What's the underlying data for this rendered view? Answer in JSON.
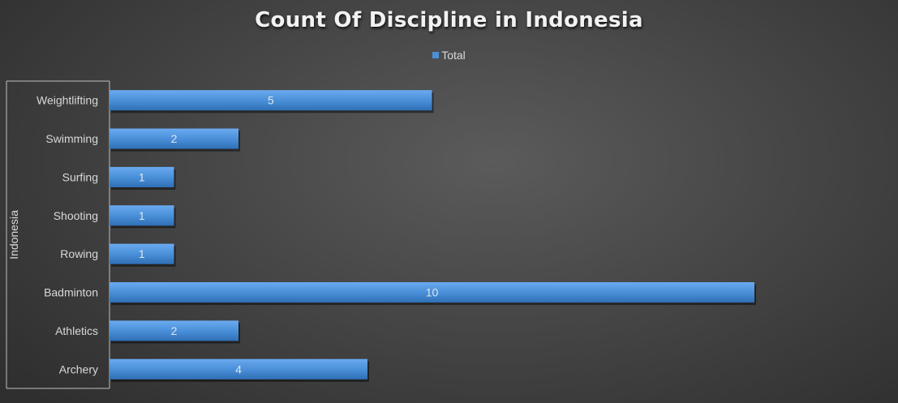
{
  "chart_data": {
    "type": "bar",
    "orientation": "horizontal",
    "title": "Count Of Discipline in Indonesia",
    "group_label": "Indonesia",
    "legend": [
      "Total"
    ],
    "legend_position": "top",
    "categories": [
      "Weightlifting",
      "Swimming",
      "Surfing",
      "Shooting",
      "Rowing",
      "Badminton",
      "Athletics",
      "Archery"
    ],
    "series": [
      {
        "name": "Total",
        "values": [
          5,
          2,
          1,
          1,
          1,
          10,
          2,
          4
        ]
      }
    ],
    "xlim": [
      0,
      10
    ],
    "grid": false,
    "data_labels": true
  },
  "colors": {
    "bar_fill": "#4a90d9",
    "bar_top": "#6aaaf0",
    "bar_bottom": "#2f6fb5"
  }
}
